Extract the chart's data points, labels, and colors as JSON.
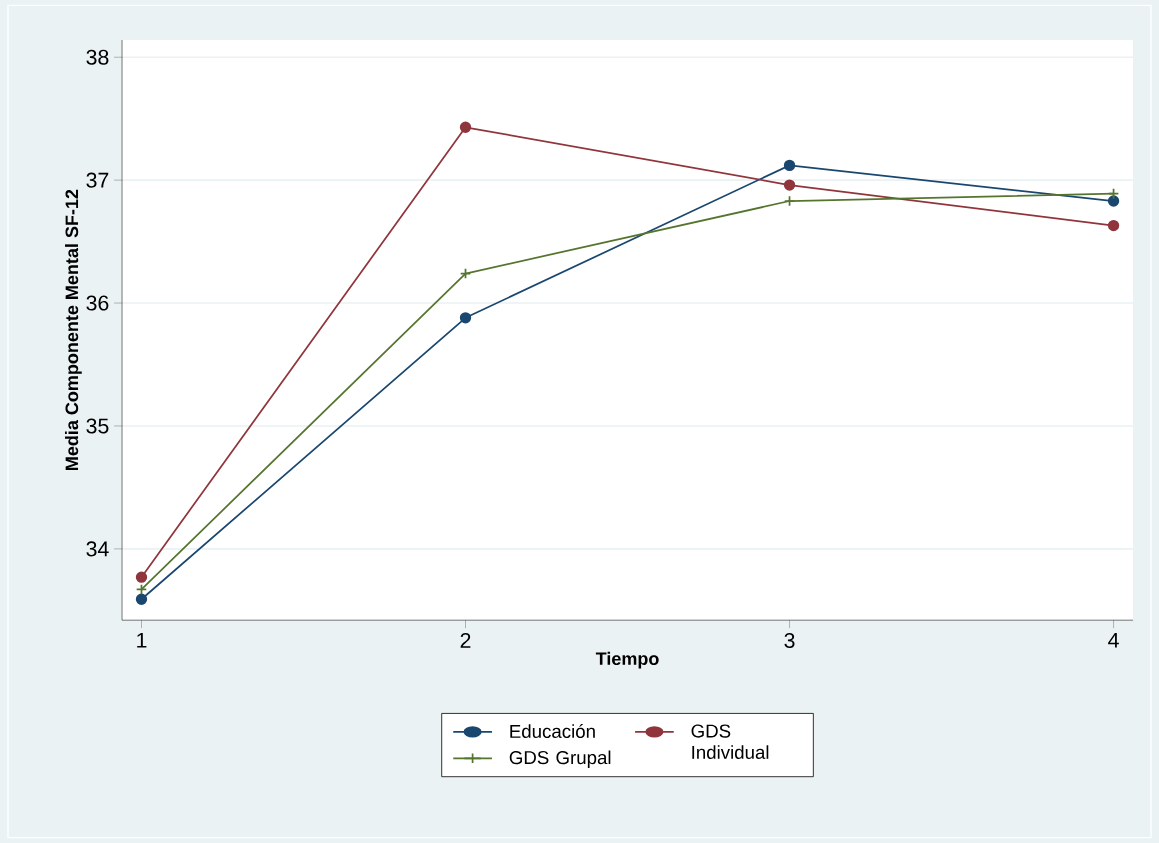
{
  "chart_data": {
    "type": "line",
    "xlabel": "Tiempo",
    "ylabel": "Media Componente Mental SF-12",
    "x": [
      1,
      2,
      3,
      4
    ],
    "series": [
      {
        "name": "Educación",
        "color": "#1a476f",
        "marker": "circle",
        "values": [
          33.59,
          35.88,
          37.12,
          36.83
        ]
      },
      {
        "name": "GDS Individual",
        "color": "#90353b",
        "marker": "circle",
        "values": [
          33.77,
          37.43,
          36.96,
          36.63
        ]
      },
      {
        "name": "GDS Grupal",
        "color": "#55752f",
        "marker": "cross",
        "values": [
          33.67,
          36.24,
          36.83,
          36.89
        ]
      }
    ],
    "xlim": [
      0.94,
      4.06
    ],
    "ylim": [
      33.42,
      38.14
    ],
    "xticks": [
      1,
      2,
      3,
      4
    ],
    "yticks": [
      34,
      35,
      36,
      37,
      38
    ],
    "grid": "y",
    "legend": "bottom",
    "line_style": "solid"
  }
}
